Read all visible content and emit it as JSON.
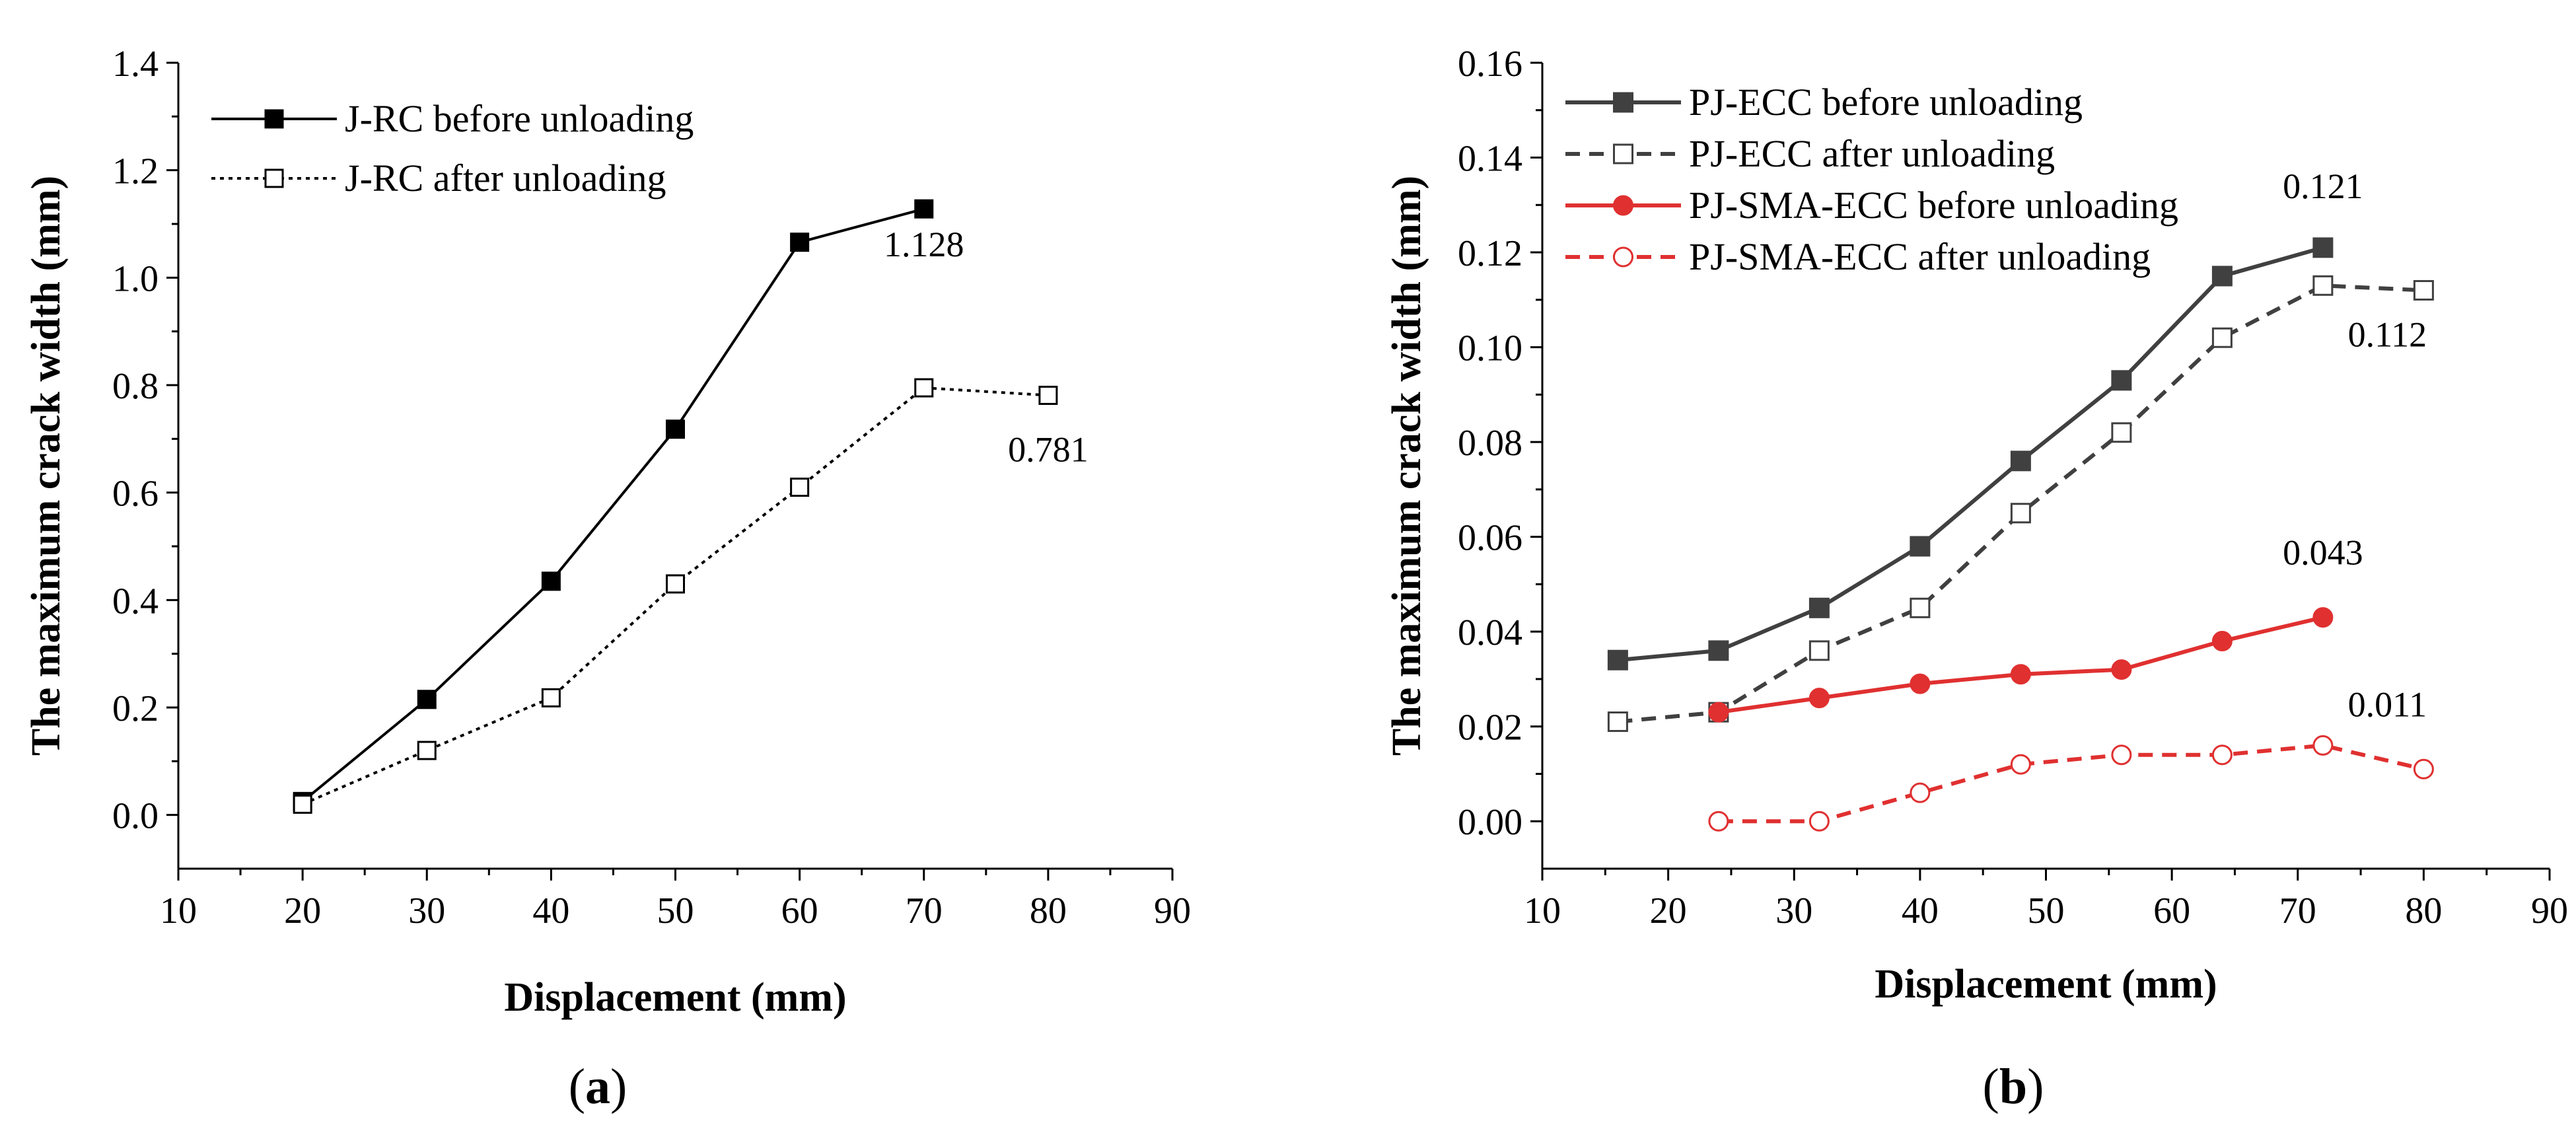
{
  "chart_data": [
    {
      "type": "line",
      "panel": "a",
      "caption": {
        "open": "(",
        "letter": "a",
        "close": ")"
      },
      "xlabel": "Displacement (mm)",
      "ylabel": "The maximum crack width (mm)",
      "xlim": [
        10,
        90
      ],
      "ylim": [
        -0.1,
        1.4
      ],
      "xticks": [
        10,
        20,
        30,
        40,
        50,
        60,
        70,
        80,
        90
      ],
      "yticks": [
        0.0,
        0.2,
        0.4,
        0.6,
        0.8,
        1.0,
        1.2,
        1.4
      ],
      "ytick_labels": [
        "0.0",
        "0.2",
        "0.4",
        "0.6",
        "0.8",
        "1.0",
        "1.2",
        "1.4"
      ],
      "legend_position": "top-left",
      "series": [
        {
          "name": "J-RC before unloading",
          "color": "#000000",
          "marker": "square-filled",
          "dash": "solid",
          "x": [
            20,
            30,
            40,
            50,
            60,
            70
          ],
          "y": [
            0.025,
            0.215,
            0.435,
            0.718,
            1.066,
            1.128
          ]
        },
        {
          "name": "J-RC after unloading",
          "color": "#000000",
          "marker": "square-open",
          "dash": "dotted",
          "x": [
            20,
            30,
            40,
            50,
            60,
            70,
            80
          ],
          "y": [
            0.02,
            0.12,
            0.218,
            0.43,
            0.61,
            0.795,
            0.781
          ]
        }
      ],
      "annotations": [
        {
          "text": "1.128",
          "x": 70,
          "y": 1.128
        },
        {
          "text": "0.781",
          "x": 80,
          "y": 0.781
        }
      ]
    },
    {
      "type": "line",
      "panel": "b",
      "caption": {
        "open": "(",
        "letter": "b",
        "close": ")"
      },
      "xlabel": "Displacement (mm)",
      "ylabel": "The maximum crack width (mm)",
      "xlim": [
        10,
        90
      ],
      "ylim": [
        -0.01,
        0.16
      ],
      "xticks": [
        10,
        20,
        30,
        40,
        50,
        60,
        70,
        80,
        90
      ],
      "yticks": [
        0.0,
        0.02,
        0.04,
        0.06,
        0.08,
        0.1,
        0.12,
        0.14,
        0.16
      ],
      "ytick_labels": [
        "0.00",
        "0.02",
        "0.04",
        "0.06",
        "0.08",
        "0.10",
        "0.12",
        "0.14",
        "0.16"
      ],
      "legend_position": "top-left",
      "series": [
        {
          "name": "PJ-ECC before unloading",
          "color": "#404040",
          "marker": "square-filled",
          "dash": "solid",
          "x": [
            16,
            24,
            32,
            40,
            48,
            56,
            64,
            72
          ],
          "y": [
            0.034,
            0.036,
            0.045,
            0.058,
            0.076,
            0.093,
            0.115,
            0.121
          ]
        },
        {
          "name": "PJ-ECC after unloading",
          "color": "#404040",
          "marker": "square-open",
          "dash": "dashed",
          "x": [
            16,
            24,
            32,
            40,
            48,
            56,
            64,
            72,
            80
          ],
          "y": [
            0.021,
            0.023,
            0.036,
            0.045,
            0.065,
            0.082,
            0.102,
            0.113,
            0.112
          ]
        },
        {
          "name": "PJ-SMA-ECC before unloading",
          "color": "#e03030",
          "marker": "circle-filled",
          "dash": "solid",
          "x": [
            24,
            32,
            40,
            48,
            56,
            64,
            72
          ],
          "y": [
            0.023,
            0.026,
            0.029,
            0.031,
            0.032,
            0.038,
            0.043
          ]
        },
        {
          "name": "PJ-SMA-ECC after unloading",
          "color": "#e03030",
          "marker": "circle-open",
          "dash": "dashed",
          "x": [
            24,
            32,
            40,
            48,
            56,
            64,
            72,
            80
          ],
          "y": [
            0.0,
            0.0,
            0.006,
            0.012,
            0.014,
            0.014,
            0.016,
            0.011
          ]
        }
      ],
      "annotations": [
        {
          "text": "0.121",
          "x": 72,
          "y": 0.121
        },
        {
          "text": "0.112",
          "x": 80,
          "y": 0.112
        },
        {
          "text": "0.043",
          "x": 72,
          "y": 0.043
        },
        {
          "text": "0.011",
          "x": 80,
          "y": 0.011
        }
      ]
    }
  ]
}
